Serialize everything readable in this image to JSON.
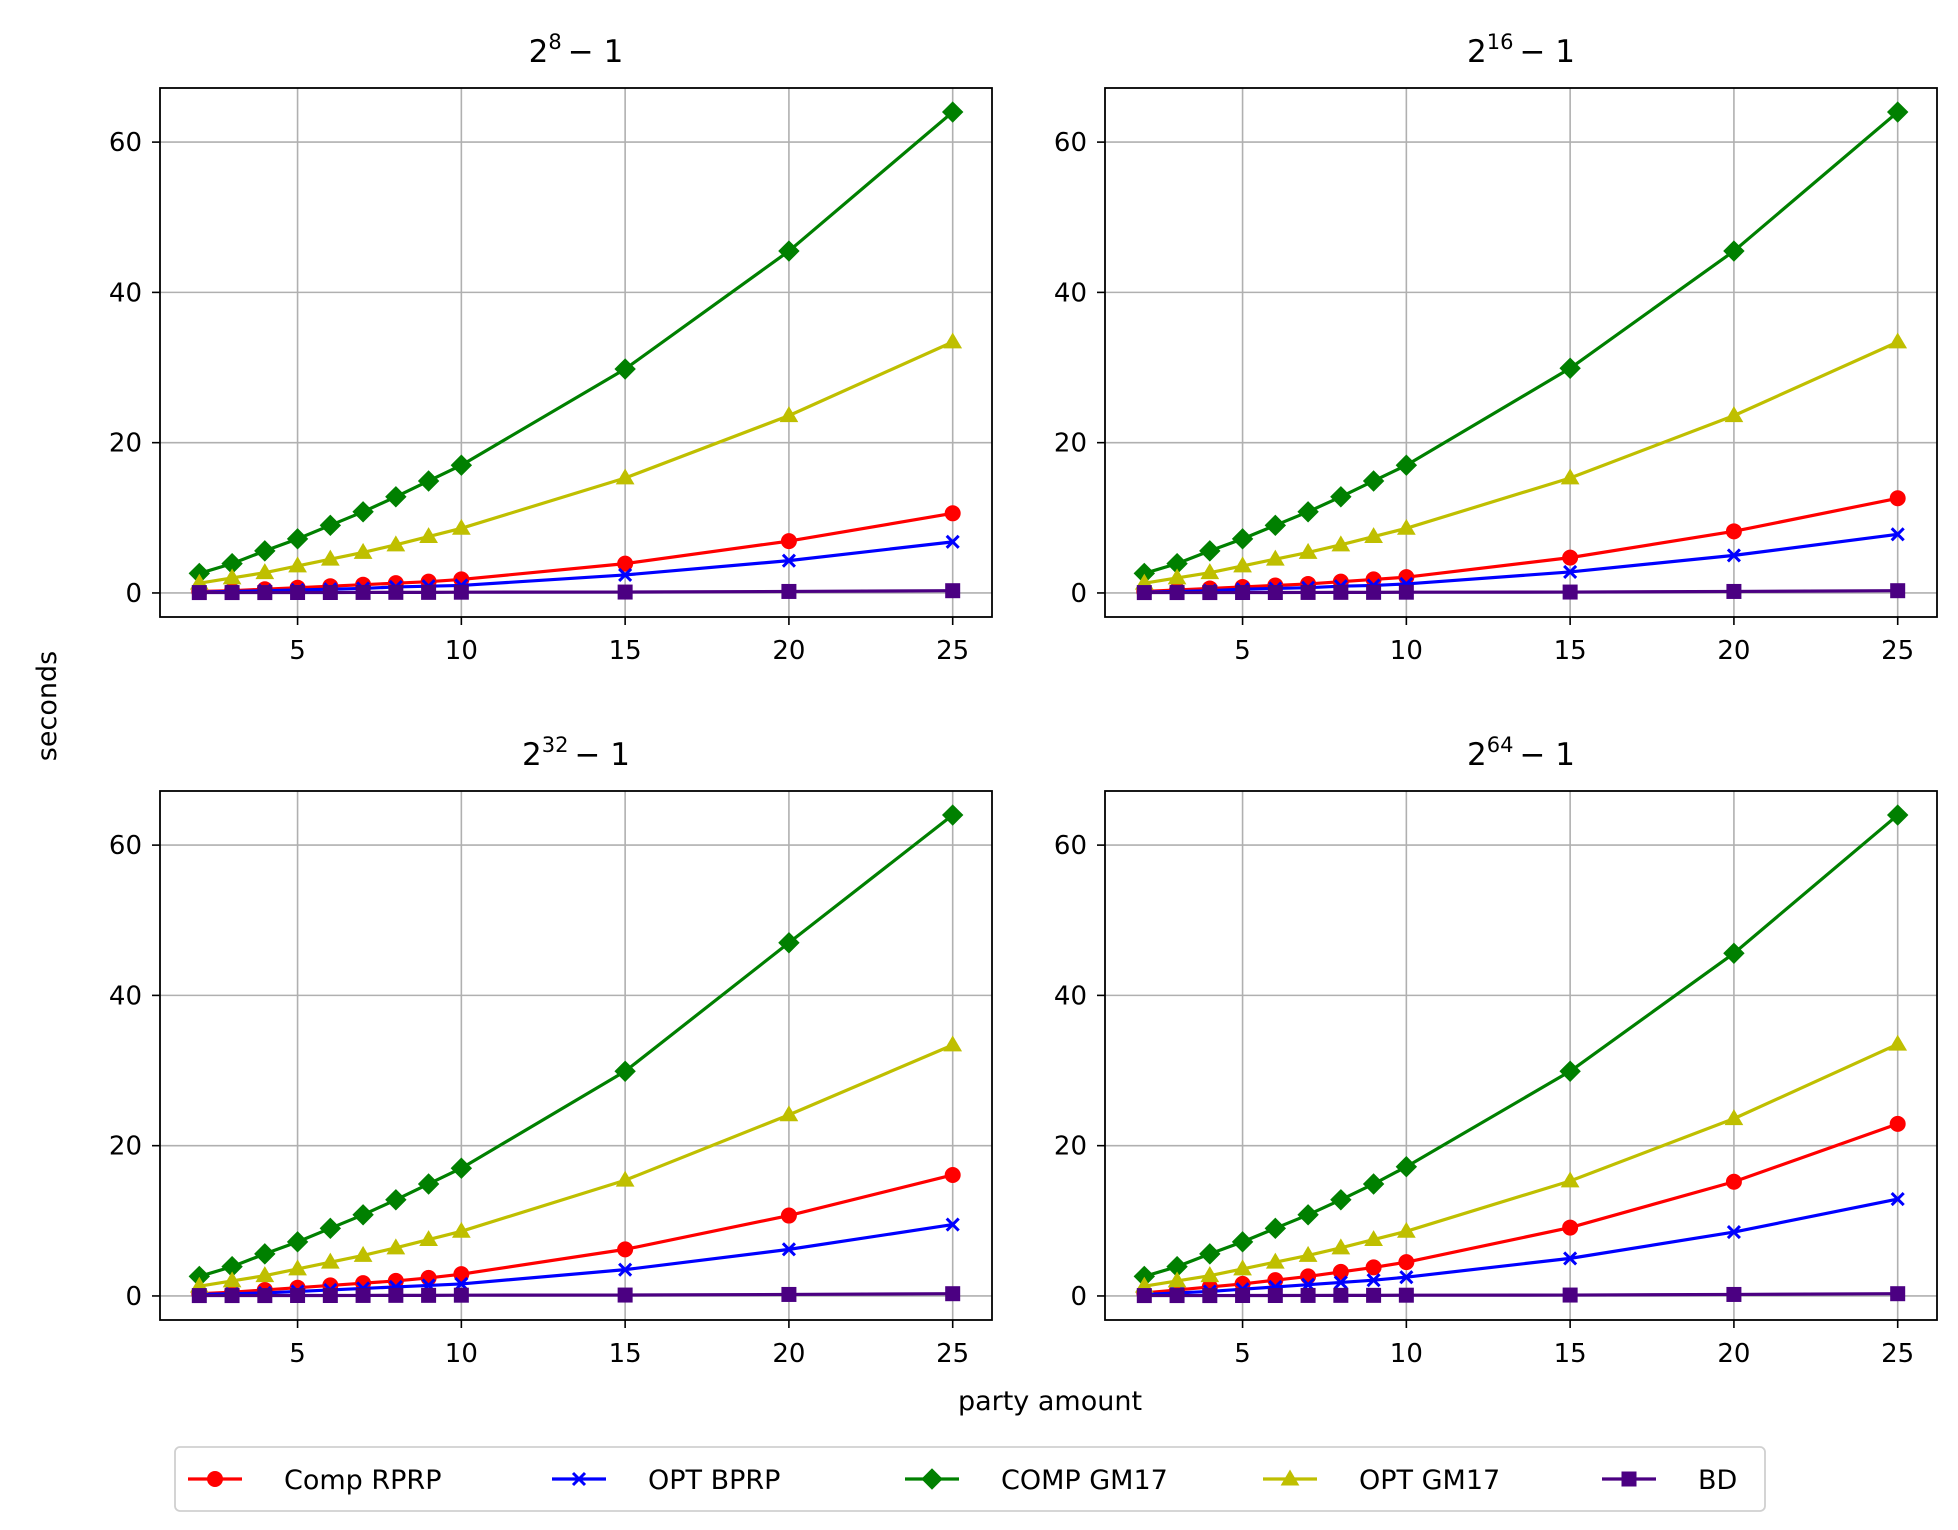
{
  "figure": {
    "ylabel": "seconds",
    "xlabel": "party amount"
  },
  "legend": {
    "placement": "bottom-center",
    "entries": [
      {
        "name": "Comp RPRP",
        "color": "#ff0000",
        "marker": "circle"
      },
      {
        "name": "OPT BPRP",
        "color": "#0000ff",
        "marker": "x"
      },
      {
        "name": "COMP GM17",
        "color": "#008000",
        "marker": "diamond"
      },
      {
        "name": "OPT GM17",
        "color": "#bfbf00",
        "marker": "triangle"
      },
      {
        "name": "BD",
        "color": "#4b0082",
        "marker": "square"
      }
    ]
  },
  "chart_data": [
    {
      "type": "line",
      "title_base": "2",
      "title_exp": "8",
      "title_rest": "− 1",
      "x": [
        2,
        3,
        4,
        5,
        6,
        7,
        8,
        9,
        10,
        15,
        20,
        25
      ],
      "xticks": [
        5,
        10,
        15,
        20,
        25
      ],
      "yticks": [
        0,
        20,
        40,
        60
      ],
      "xlim": [
        0.8,
        26.2
      ],
      "ylim": [
        -3.2,
        67.2
      ],
      "grid": true,
      "series": [
        {
          "name": "Comp RPRP",
          "values": [
            0.2,
            0.3,
            0.5,
            0.7,
            0.9,
            1.1,
            1.3,
            1.5,
            1.8,
            3.9,
            6.9,
            10.6
          ]
        },
        {
          "name": "OPT BPRP",
          "values": [
            0.1,
            0.2,
            0.3,
            0.4,
            0.5,
            0.6,
            0.8,
            0.9,
            1.0,
            2.4,
            4.3,
            6.8
          ]
        },
        {
          "name": "COMP GM17",
          "values": [
            2.6,
            3.9,
            5.6,
            7.2,
            9.0,
            10.8,
            12.8,
            14.9,
            17.0,
            29.8,
            45.5,
            64.0
          ]
        },
        {
          "name": "OPT GM17",
          "values": [
            1.3,
            2.0,
            2.7,
            3.6,
            4.5,
            5.4,
            6.4,
            7.5,
            8.6,
            15.3,
            23.6,
            33.4
          ]
        },
        {
          "name": "BD",
          "values": [
            0.05,
            0.05,
            0.05,
            0.06,
            0.06,
            0.07,
            0.08,
            0.08,
            0.1,
            0.12,
            0.2,
            0.3
          ]
        }
      ]
    },
    {
      "type": "line",
      "title_base": "2",
      "title_exp": "16",
      "title_rest": "− 1",
      "x": [
        2,
        3,
        4,
        5,
        6,
        7,
        8,
        9,
        10,
        15,
        20,
        25
      ],
      "xticks": [
        5,
        10,
        15,
        20,
        25
      ],
      "yticks": [
        0,
        20,
        40,
        60
      ],
      "xlim": [
        0.8,
        26.2
      ],
      "ylim": [
        -3.2,
        67.2
      ],
      "grid": true,
      "series": [
        {
          "name": "Comp RPRP",
          "values": [
            0.2,
            0.4,
            0.6,
            0.8,
            1.0,
            1.2,
            1.5,
            1.8,
            2.1,
            4.7,
            8.2,
            12.6
          ]
        },
        {
          "name": "OPT BPRP",
          "values": [
            0.1,
            0.2,
            0.3,
            0.5,
            0.6,
            0.7,
            0.9,
            1.0,
            1.2,
            2.8,
            5.0,
            7.8
          ]
        },
        {
          "name": "COMP GM17",
          "values": [
            2.6,
            3.9,
            5.6,
            7.2,
            9.0,
            10.8,
            12.8,
            14.9,
            17.0,
            29.9,
            45.5,
            64.0
          ]
        },
        {
          "name": "OPT GM17",
          "values": [
            1.3,
            2.0,
            2.7,
            3.6,
            4.5,
            5.4,
            6.4,
            7.5,
            8.6,
            15.3,
            23.6,
            33.4
          ]
        },
        {
          "name": "BD",
          "values": [
            0.05,
            0.05,
            0.05,
            0.06,
            0.06,
            0.07,
            0.08,
            0.08,
            0.1,
            0.12,
            0.2,
            0.3
          ]
        }
      ]
    },
    {
      "type": "line",
      "title_base": "2",
      "title_exp": "32",
      "title_rest": "− 1",
      "x": [
        2,
        3,
        4,
        5,
        6,
        7,
        8,
        9,
        10,
        15,
        20,
        25
      ],
      "xticks": [
        5,
        10,
        15,
        20,
        25
      ],
      "yticks": [
        0,
        20,
        40,
        60
      ],
      "xlim": [
        0.8,
        26.2
      ],
      "ylim": [
        -3.2,
        67.2
      ],
      "grid": true,
      "series": [
        {
          "name": "Comp RPRP",
          "values": [
            0.3,
            0.5,
            0.8,
            1.1,
            1.4,
            1.7,
            2.0,
            2.4,
            2.9,
            6.2,
            10.7,
            16.1
          ]
        },
        {
          "name": "OPT BPRP",
          "values": [
            0.2,
            0.3,
            0.4,
            0.6,
            0.8,
            1.0,
            1.2,
            1.4,
            1.6,
            3.5,
            6.2,
            9.5
          ]
        },
        {
          "name": "COMP GM17",
          "values": [
            2.6,
            3.9,
            5.6,
            7.2,
            9.0,
            10.8,
            12.8,
            14.9,
            17.0,
            29.9,
            47.0,
            64.0
          ]
        },
        {
          "name": "OPT GM17",
          "values": [
            1.3,
            2.0,
            2.7,
            3.6,
            4.5,
            5.4,
            6.4,
            7.5,
            8.6,
            15.4,
            24.1,
            33.4
          ]
        },
        {
          "name": "BD",
          "values": [
            0.05,
            0.05,
            0.05,
            0.06,
            0.06,
            0.07,
            0.08,
            0.08,
            0.1,
            0.12,
            0.2,
            0.3
          ]
        }
      ]
    },
    {
      "type": "line",
      "title_base": "2",
      "title_exp": "64",
      "title_rest": "− 1",
      "x": [
        2,
        3,
        4,
        5,
        6,
        7,
        8,
        9,
        10,
        15,
        20,
        25
      ],
      "xticks": [
        5,
        10,
        15,
        20,
        25
      ],
      "yticks": [
        0,
        20,
        40,
        60
      ],
      "xlim": [
        0.8,
        26.2
      ],
      "ylim": [
        -3.2,
        67.2
      ],
      "grid": true,
      "series": [
        {
          "name": "Comp RPRP",
          "values": [
            0.4,
            0.8,
            1.2,
            1.6,
            2.1,
            2.6,
            3.2,
            3.8,
            4.5,
            9.1,
            15.2,
            22.9
          ]
        },
        {
          "name": "OPT BPRP",
          "values": [
            0.2,
            0.4,
            0.6,
            0.9,
            1.2,
            1.5,
            1.8,
            2.1,
            2.5,
            5.0,
            8.5,
            12.9
          ]
        },
        {
          "name": "COMP GM17",
          "values": [
            2.6,
            3.9,
            5.6,
            7.2,
            9.0,
            10.8,
            12.8,
            14.9,
            17.2,
            29.9,
            45.6,
            64.0
          ]
        },
        {
          "name": "OPT GM17",
          "values": [
            1.3,
            2.0,
            2.7,
            3.6,
            4.5,
            5.4,
            6.4,
            7.5,
            8.6,
            15.3,
            23.6,
            33.5
          ]
        },
        {
          "name": "BD",
          "values": [
            0.05,
            0.05,
            0.05,
            0.06,
            0.06,
            0.07,
            0.08,
            0.08,
            0.1,
            0.12,
            0.2,
            0.3
          ]
        }
      ]
    }
  ]
}
